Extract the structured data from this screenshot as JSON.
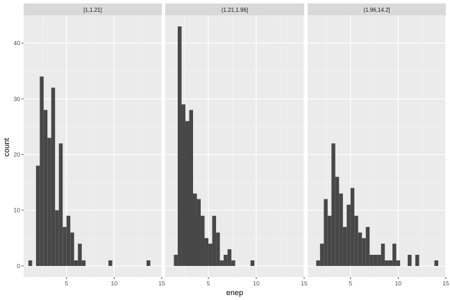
{
  "chart_data": {
    "type": "histogram",
    "xlabel": "enep",
    "ylabel": "count",
    "xlim": [
      0.5,
      15
    ],
    "ylim": [
      -2,
      45
    ],
    "x_ticks": [
      5,
      10,
      15
    ],
    "y_ticks": [
      0,
      10,
      20,
      30,
      40
    ],
    "bin_width": 0.4,
    "bar_color": "#474747",
    "panel_bg": "#ebebeb",
    "strip_bg": "#d9d9d9",
    "grid": true,
    "facets": [
      {
        "label": "[1,1.21]",
        "bins": [
          {
            "x": 1.2,
            "count": 1
          },
          {
            "x": 2.0,
            "count": 18
          },
          {
            "x": 2.4,
            "count": 34
          },
          {
            "x": 2.8,
            "count": 28
          },
          {
            "x": 3.2,
            "count": 23
          },
          {
            "x": 3.6,
            "count": 32
          },
          {
            "x": 4.0,
            "count": 10
          },
          {
            "x": 4.4,
            "count": 22
          },
          {
            "x": 4.8,
            "count": 7
          },
          {
            "x": 5.2,
            "count": 9
          },
          {
            "x": 5.6,
            "count": 6
          },
          {
            "x": 6.0,
            "count": 1
          },
          {
            "x": 6.4,
            "count": 4
          },
          {
            "x": 6.8,
            "count": 1
          },
          {
            "x": 9.6,
            "count": 1
          },
          {
            "x": 13.6,
            "count": 1
          }
        ]
      },
      {
        "label": "(1.21,1.96]",
        "bins": [
          {
            "x": 1.6,
            "count": 2
          },
          {
            "x": 2.0,
            "count": 43
          },
          {
            "x": 2.4,
            "count": 29
          },
          {
            "x": 2.8,
            "count": 26
          },
          {
            "x": 3.2,
            "count": 28
          },
          {
            "x": 3.6,
            "count": 13
          },
          {
            "x": 4.0,
            "count": 12
          },
          {
            "x": 4.4,
            "count": 9
          },
          {
            "x": 4.8,
            "count": 5
          },
          {
            "x": 5.2,
            "count": 4
          },
          {
            "x": 5.6,
            "count": 9
          },
          {
            "x": 6.0,
            "count": 6
          },
          {
            "x": 6.4,
            "count": 1
          },
          {
            "x": 6.8,
            "count": 2
          },
          {
            "x": 7.2,
            "count": 3
          },
          {
            "x": 7.6,
            "count": 1
          },
          {
            "x": 9.6,
            "count": 1
          }
        ]
      },
      {
        "label": "(1.96,14.2]",
        "bins": [
          {
            "x": 1.6,
            "count": 1
          },
          {
            "x": 2.0,
            "count": 4
          },
          {
            "x": 2.4,
            "count": 12
          },
          {
            "x": 2.8,
            "count": 9
          },
          {
            "x": 3.2,
            "count": 22
          },
          {
            "x": 3.6,
            "count": 16
          },
          {
            "x": 4.0,
            "count": 13
          },
          {
            "x": 4.4,
            "count": 7
          },
          {
            "x": 4.8,
            "count": 11
          },
          {
            "x": 5.2,
            "count": 14
          },
          {
            "x": 5.6,
            "count": 9
          },
          {
            "x": 6.0,
            "count": 6
          },
          {
            "x": 6.4,
            "count": 5
          },
          {
            "x": 6.8,
            "count": 7
          },
          {
            "x": 7.2,
            "count": 2
          },
          {
            "x": 7.6,
            "count": 2
          },
          {
            "x": 8.0,
            "count": 2
          },
          {
            "x": 8.4,
            "count": 4
          },
          {
            "x": 8.8,
            "count": 1
          },
          {
            "x": 9.2,
            "count": 1
          },
          {
            "x": 9.6,
            "count": 4
          },
          {
            "x": 10.0,
            "count": 1
          },
          {
            "x": 11.2,
            "count": 2
          },
          {
            "x": 12.0,
            "count": 2
          },
          {
            "x": 14.0,
            "count": 1
          }
        ]
      }
    ]
  }
}
